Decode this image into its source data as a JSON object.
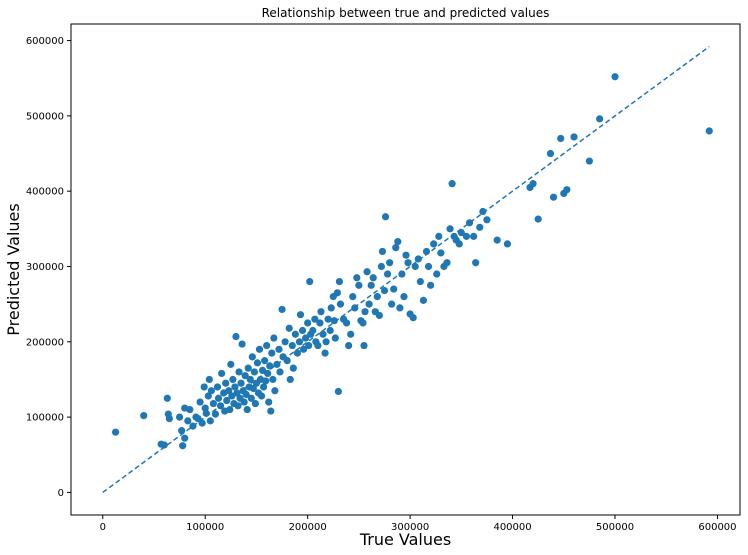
{
  "chart_data": {
    "type": "scatter",
    "title": "Relationship between true and predicted values",
    "xlabel": "True Values",
    "ylabel": "Predicted Values",
    "xlim": [
      -31000,
      622000
    ],
    "ylim": [
      -30000,
      622000
    ],
    "xticks": [
      0,
      100000,
      200000,
      300000,
      400000,
      500000,
      600000
    ],
    "yticks": [
      0,
      100000,
      200000,
      300000,
      400000,
      500000,
      600000
    ],
    "xtick_labels": [
      "0",
      "100000",
      "200000",
      "300000",
      "400000",
      "500000",
      "600000"
    ],
    "ytick_labels": [
      "0",
      "100000",
      "200000",
      "300000",
      "400000",
      "500000",
      "600000"
    ],
    "grid": false,
    "marker_color": "#1f77b4",
    "reference_line": {
      "style": "dashed",
      "color": "#1f77b4",
      "from": [
        0,
        0
      ],
      "to": [
        592000,
        592000
      ]
    },
    "points": [
      [
        12500,
        80000
      ],
      [
        40000,
        102000
      ],
      [
        57000,
        64000
      ],
      [
        60000,
        63000
      ],
      [
        63000,
        125000
      ],
      [
        64000,
        104000
      ],
      [
        65000,
        98000
      ],
      [
        75000,
        100000
      ],
      [
        77000,
        82000
      ],
      [
        78000,
        62000
      ],
      [
        80000,
        72000
      ],
      [
        80000,
        112000
      ],
      [
        83000,
        95000
      ],
      [
        85000,
        110000
      ],
      [
        88000,
        88000
      ],
      [
        91000,
        100000
      ],
      [
        93000,
        98000
      ],
      [
        95000,
        120000
      ],
      [
        97000,
        92000
      ],
      [
        99000,
        140000
      ],
      [
        100000,
        112000
      ],
      [
        101000,
        105000
      ],
      [
        103000,
        128000
      ],
      [
        104000,
        150000
      ],
      [
        105000,
        95000
      ],
      [
        106000,
        135000
      ],
      [
        108000,
        118000
      ],
      [
        110000,
        104000
      ],
      [
        112000,
        140000
      ],
      [
        113000,
        125000
      ],
      [
        115000,
        115000
      ],
      [
        116000,
        158000
      ],
      [
        118000,
        132000
      ],
      [
        119000,
        108000
      ],
      [
        120000,
        145000
      ],
      [
        121000,
        122000
      ],
      [
        123000,
        135000
      ],
      [
        124000,
        110000
      ],
      [
        125000,
        170000
      ],
      [
        126000,
        128000
      ],
      [
        127000,
        150000
      ],
      [
        128000,
        118000
      ],
      [
        129000,
        140000
      ],
      [
        130000,
        207000
      ],
      [
        131000,
        132000
      ],
      [
        132000,
        115000
      ],
      [
        133000,
        160000
      ],
      [
        134000,
        125000
      ],
      [
        135000,
        145000
      ],
      [
        136000,
        197000
      ],
      [
        137000,
        135000
      ],
      [
        138000,
        120000
      ],
      [
        139000,
        155000
      ],
      [
        140000,
        130000
      ],
      [
        141000,
        110000
      ],
      [
        142000,
        165000
      ],
      [
        143000,
        140000
      ],
      [
        144000,
        150000
      ],
      [
        145000,
        125000
      ],
      [
        146000,
        180000
      ],
      [
        147000,
        138000
      ],
      [
        148000,
        160000
      ],
      [
        149000,
        118000
      ],
      [
        150000,
        145000
      ],
      [
        151000,
        172000
      ],
      [
        152000,
        132000
      ],
      [
        153000,
        190000
      ],
      [
        154000,
        150000
      ],
      [
        155000,
        128000
      ],
      [
        156000,
        162000
      ],
      [
        157000,
        140000
      ],
      [
        158000,
        175000
      ],
      [
        159000,
        148000
      ],
      [
        160000,
        195000
      ],
      [
        161000,
        158000
      ],
      [
        162000,
        120000
      ],
      [
        163000,
        168000
      ],
      [
        164000,
        108000
      ],
      [
        165000,
        185000
      ],
      [
        166000,
        150000
      ],
      [
        167000,
        205000
      ],
      [
        168000,
        135000
      ],
      [
        170000,
        170000
      ],
      [
        172000,
        190000
      ],
      [
        173000,
        160000
      ],
      [
        175000,
        243000
      ],
      [
        176000,
        180000
      ],
      [
        178000,
        200000
      ],
      [
        180000,
        175000
      ],
      [
        182000,
        218000
      ],
      [
        183000,
        150000
      ],
      [
        185000,
        195000
      ],
      [
        186000,
        165000
      ],
      [
        188000,
        210000
      ],
      [
        190000,
        185000
      ],
      [
        192000,
        200000
      ],
      [
        193000,
        236000
      ],
      [
        195000,
        215000
      ],
      [
        196000,
        190000
      ],
      [
        198000,
        205000
      ],
      [
        200000,
        225000
      ],
      [
        201000,
        195000
      ],
      [
        202000,
        280000
      ],
      [
        203000,
        210000
      ],
      [
        205000,
        215000
      ],
      [
        207000,
        230000
      ],
      [
        208000,
        200000
      ],
      [
        210000,
        195000
      ],
      [
        212000,
        225000
      ],
      [
        213000,
        240000
      ],
      [
        215000,
        210000
      ],
      [
        217000,
        185000
      ],
      [
        218000,
        200000
      ],
      [
        220000,
        230000
      ],
      [
        222000,
        215000
      ],
      [
        223000,
        245000
      ],
      [
        225000,
        260000
      ],
      [
        226000,
        228000
      ],
      [
        227000,
        205000
      ],
      [
        229000,
        265000
      ],
      [
        230000,
        134000
      ],
      [
        231000,
        280000
      ],
      [
        232000,
        250000
      ],
      [
        235000,
        230000
      ],
      [
        238000,
        225000
      ],
      [
        240000,
        195000
      ],
      [
        242000,
        210000
      ],
      [
        244000,
        260000
      ],
      [
        246000,
        245000
      ],
      [
        248000,
        285000
      ],
      [
        250000,
        275000
      ],
      [
        252000,
        228000
      ],
      [
        254000,
        225000
      ],
      [
        255000,
        195000
      ],
      [
        256000,
        240000
      ],
      [
        258000,
        293000
      ],
      [
        260000,
        250000
      ],
      [
        262000,
        275000
      ],
      [
        264000,
        285000
      ],
      [
        266000,
        240000
      ],
      [
        268000,
        260000
      ],
      [
        270000,
        235000
      ],
      [
        272000,
        300000
      ],
      [
        273000,
        320000
      ],
      [
        275000,
        268000
      ],
      [
        276000,
        366000
      ],
      [
        278000,
        290000
      ],
      [
        280000,
        305000
      ],
      [
        282000,
        250000
      ],
      [
        284000,
        270000
      ],
      [
        286000,
        325000
      ],
      [
        288000,
        333000
      ],
      [
        290000,
        245000
      ],
      [
        292000,
        290000
      ],
      [
        294000,
        260000
      ],
      [
        296000,
        315000
      ],
      [
        298000,
        305000
      ],
      [
        300000,
        237000
      ],
      [
        303000,
        232000
      ],
      [
        305000,
        300000
      ],
      [
        308000,
        310000
      ],
      [
        310000,
        280000
      ],
      [
        313000,
        255000
      ],
      [
        316000,
        320000
      ],
      [
        318000,
        300000
      ],
      [
        320000,
        275000
      ],
      [
        323000,
        330000
      ],
      [
        326000,
        290000
      ],
      [
        328000,
        340000
      ],
      [
        330000,
        318000
      ],
      [
        333000,
        300000
      ],
      [
        336000,
        305000
      ],
      [
        339000,
        350000
      ],
      [
        341000,
        410000
      ],
      [
        343000,
        340000
      ],
      [
        345000,
        335000
      ],
      [
        348000,
        330000
      ],
      [
        350000,
        345000
      ],
      [
        355000,
        340000
      ],
      [
        358000,
        358000
      ],
      [
        362000,
        340000
      ],
      [
        364000,
        305000
      ],
      [
        368000,
        352000
      ],
      [
        371000,
        373000
      ],
      [
        375000,
        362000
      ],
      [
        385000,
        335000
      ],
      [
        395000,
        330000
      ],
      [
        417000,
        405000
      ],
      [
        420000,
        410000
      ],
      [
        425000,
        363000
      ],
      [
        437000,
        450000
      ],
      [
        440000,
        392000
      ],
      [
        447000,
        470000
      ],
      [
        450000,
        397000
      ],
      [
        453000,
        402000
      ],
      [
        460000,
        472000
      ],
      [
        475000,
        440000
      ],
      [
        485000,
        496000
      ],
      [
        500000,
        552000
      ],
      [
        592000,
        480000
      ]
    ]
  }
}
